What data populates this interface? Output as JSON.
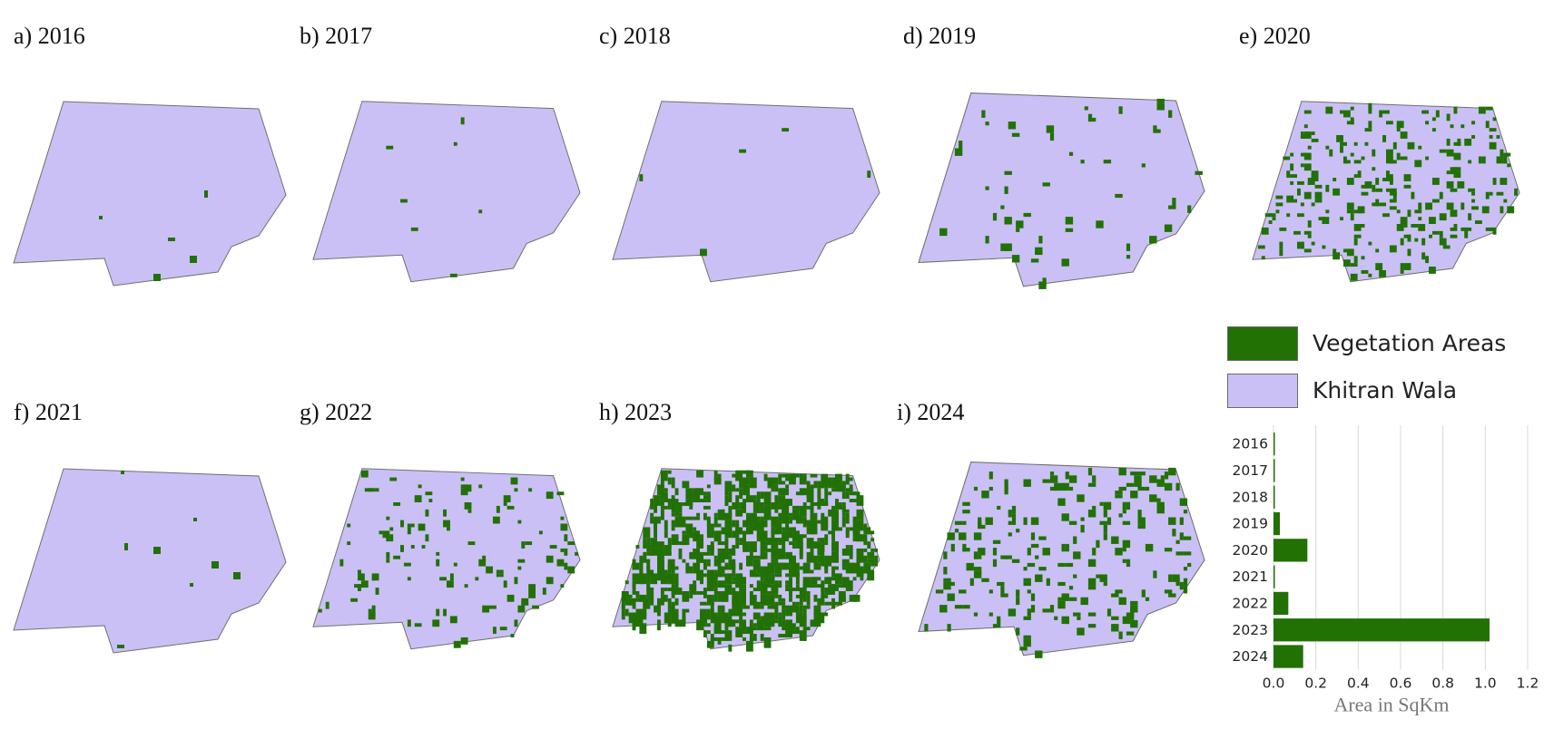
{
  "colors": {
    "vegetation": "#217105",
    "region": "#cbc0f5",
    "outline": "#6f6f6f",
    "grid": "#d9d9d9"
  },
  "panels": [
    {
      "label": "a) 2016",
      "year": "2016",
      "density": 0.004
    },
    {
      "label": "b) 2017",
      "year": "2017",
      "density": 0.003
    },
    {
      "label": "c) 2018",
      "year": "2018",
      "density": 0.001
    },
    {
      "label": "d) 2019",
      "year": "2019",
      "density": 0.02
    },
    {
      "label": "e) 2020",
      "year": "2020",
      "density": 0.1
    },
    {
      "label": "f) 2021",
      "year": "2021",
      "density": 0.003
    },
    {
      "label": "g) 2022",
      "year": "2022",
      "density": 0.045
    },
    {
      "label": "h) 2023",
      "year": "2023",
      "density": 0.3
    },
    {
      "label": "i) 2024",
      "year": "2024",
      "density": 0.09
    }
  ],
  "legend": {
    "vegetation_label": "Vegetation Areas",
    "region_label": "Khitran Wala"
  },
  "chart_data": {
    "type": "bar",
    "orientation": "horizontal",
    "categories": [
      "2016",
      "2017",
      "2018",
      "2019",
      "2020",
      "2021",
      "2022",
      "2023",
      "2024"
    ],
    "values": [
      0.005,
      0.002,
      0.001,
      0.03,
      0.16,
      0.003,
      0.07,
      1.02,
      0.14
    ],
    "xlabel": "Area in SqKm",
    "xlim": [
      0,
      1.2
    ],
    "xticks": [
      "0.0",
      "0.2",
      "0.4",
      "0.6",
      "0.8",
      "1.0",
      "1.2"
    ],
    "grid": true
  }
}
